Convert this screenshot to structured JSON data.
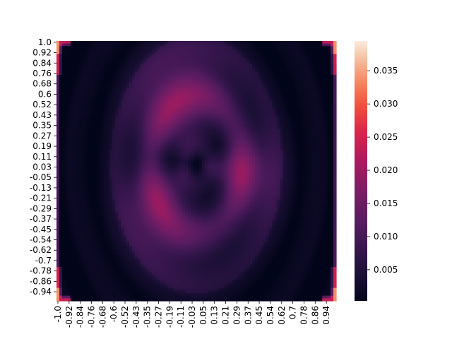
{
  "chart_data": {
    "type": "heatmap",
    "title": "",
    "xlabel": "",
    "ylabel": "",
    "grid_size": 100,
    "x_tick_labels": [
      "-1.0",
      "-0.92",
      "-0.84",
      "-0.76",
      "-0.68",
      "-0.6",
      "-0.52",
      "-0.43",
      "-0.35",
      "-0.27",
      "-0.19",
      "-0.11",
      "-0.03",
      "0.05",
      "0.13",
      "0.21",
      "0.29",
      "0.37",
      "0.45",
      "0.54",
      "0.62",
      "0.7",
      "0.78",
      "0.86",
      "0.94"
    ],
    "y_tick_labels": [
      "1.0",
      "0.92",
      "0.84",
      "0.76",
      "0.68",
      "0.6",
      "0.52",
      "0.43",
      "0.35",
      "0.27",
      "0.19",
      "0.11",
      "0.03",
      "-0.05",
      "-0.13",
      "-0.21",
      "-0.29",
      "-0.37",
      "-0.45",
      "-0.54",
      "-0.62",
      "-0.7",
      "-0.78",
      "-0.86",
      "-0.94"
    ],
    "colorbar": {
      "colormap": "rocket",
      "range": [
        0.0003,
        0.0395
      ],
      "ticks": [
        0.005,
        0.01,
        0.015,
        0.02,
        0.025,
        0.03,
        0.035
      ],
      "tick_labels": [
        "0.005",
        "0.010",
        "0.015",
        "0.020",
        "0.025",
        "0.030",
        "0.035"
      ]
    },
    "value_pattern": {
      "description_of_field": "elliptical ring pattern",
      "center": [
        0.0,
        0.05
      ],
      "center_min": 0.0005,
      "peak_ring_value": 0.017,
      "corner_max": 0.028
    }
  }
}
